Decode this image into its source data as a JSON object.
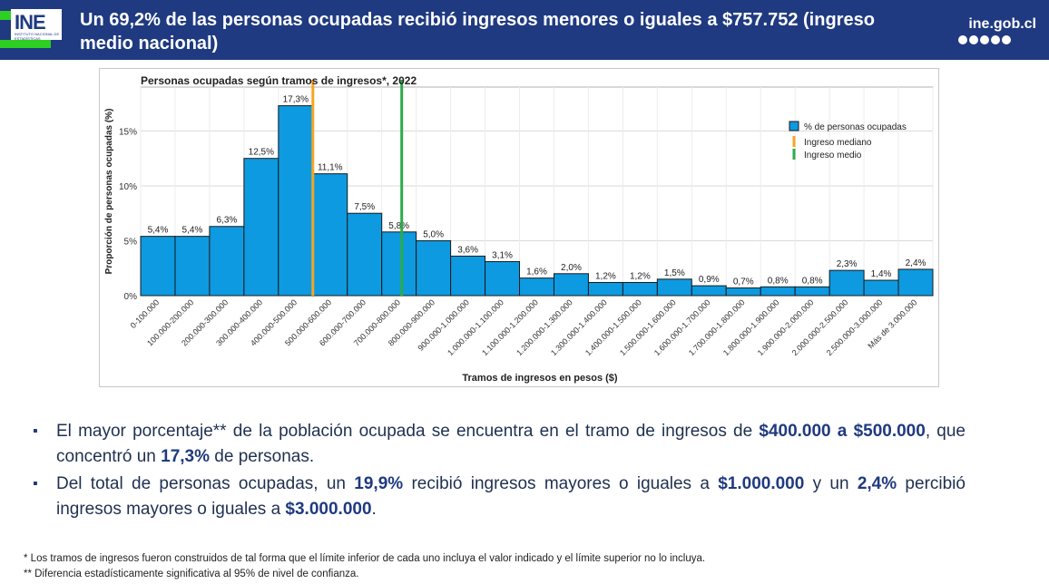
{
  "header": {
    "title": "Un 69,2% de las personas ocupadas recibió ingresos menores o iguales a $757.752 (ingreso medio nacional)",
    "logo_text": "INE",
    "logo_subtext": "INSTITUTO NACIONAL DE ESTADÍSTICAS",
    "site": "ine.gob.cl",
    "socials": [
      "facebook-icon",
      "twitter-icon",
      "youtube-icon",
      "linkedin-icon",
      "instagram-icon"
    ]
  },
  "chart_data": {
    "type": "bar",
    "title": "Personas ocupadas según tramos de ingresos*, 2022",
    "xlabel": "Tramos de ingresos en pesos ($)",
    "ylabel": "Proporción de personas ocupadas (%)",
    "ylim": [
      0,
      19
    ],
    "yticks": [
      "0%",
      "5%",
      "10%",
      "15%"
    ],
    "yticks_values": [
      0,
      5,
      10,
      15
    ],
    "grid": true,
    "legend_position": "top-right",
    "categories": [
      "0-100.000",
      "100.000-200.000",
      "200.000-300.000",
      "300.000-400.000",
      "400.000-500.000",
      "500.000-600.000",
      "600.000-700.000",
      "700.000-800.000",
      "800.000-900.000",
      "900.000-1.000.000",
      "1.000.000-1.100.000",
      "1.100.000-1.200.000",
      "1.200.000-1.300.000",
      "1.300.000-1.400.000",
      "1.400.000-1.500.000",
      "1.500.000-1.600.000",
      "1.600.000-1.700.000",
      "1.700.000-1.800.000",
      "1.800.000-1.900.000",
      "1.900.000-2.000.000",
      "2.000.000-2.500.000",
      "2.500.000-3.000.000",
      "Más de 3.000.000"
    ],
    "series": [
      {
        "name": "% de personas ocupadas",
        "color": "#0d9ae0",
        "values": [
          5.4,
          5.4,
          6.3,
          12.5,
          17.3,
          11.1,
          7.5,
          5.8,
          5.0,
          3.6,
          3.1,
          1.6,
          2.0,
          1.2,
          1.2,
          1.5,
          0.9,
          0.7,
          0.8,
          0.8,
          2.3,
          1.4,
          2.4
        ],
        "labels": [
          "5,4%",
          "5,4%",
          "6,3%",
          "12,5%",
          "17,3%",
          "11,1%",
          "7,5%",
          "5,8%",
          "5,0%",
          "3,6%",
          "3,1%",
          "1,6%",
          "2,0%",
          "1,2%",
          "1,2%",
          "1,5%",
          "0,9%",
          "0,7%",
          "0,8%",
          "0,8%",
          "2,3%",
          "1,4%",
          "2,4%"
        ]
      }
    ],
    "reference_lines": [
      {
        "name": "Ingreso mediano",
        "color": "#f5a623",
        "category_position": 5.0
      },
      {
        "name": "Ingreso medio",
        "color": "#2daa4a",
        "category_position": 7.58
      }
    ]
  },
  "bullets": [
    [
      {
        "text": "El mayor porcentaje** de la población ocupada se encuentra en el tramo de ingresos de ",
        "bold": false
      },
      {
        "text": "$400.000 a $500.000",
        "bold": true
      },
      {
        "text": ", que concentró un ",
        "bold": false
      },
      {
        "text": "17,3%",
        "bold": true
      },
      {
        "text": " de personas.",
        "bold": false
      }
    ],
    [
      {
        "text": "Del total de personas ocupadas, un ",
        "bold": false
      },
      {
        "text": "19,9%",
        "bold": true
      },
      {
        "text": " recibió ingresos mayores o iguales a ",
        "bold": false
      },
      {
        "text": "$1.000.000",
        "bold": true
      },
      {
        "text": " y un ",
        "bold": false
      },
      {
        "text": "2,4%",
        "bold": true
      },
      {
        "text": " percibió ingresos mayores o iguales a ",
        "bold": false
      },
      {
        "text": "$3.000.000",
        "bold": true
      },
      {
        "text": ".",
        "bold": false
      }
    ]
  ],
  "footnotes": {
    "note1": "*  Los tramos de ingresos fueron construidos de tal forma que el límite inferior de cada uno incluya el valor indicado y el límite superior no lo incluya.",
    "note2": "** Diferencia estadísticamente significativa al 95% de nivel de confianza."
  }
}
